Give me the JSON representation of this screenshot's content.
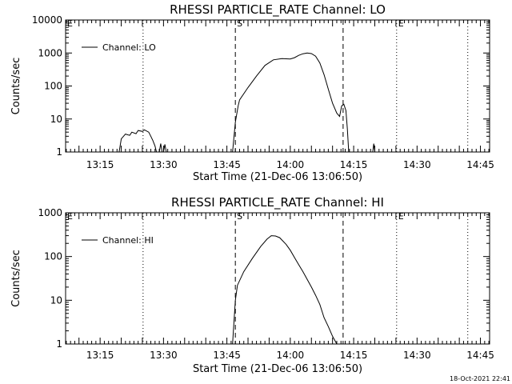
{
  "footer": {
    "timestamp": "18-Oct-2021 22:41"
  },
  "chart_data": [
    {
      "type": "line",
      "title": "RHESSI PARTICLE_RATE Channel: LO",
      "xlabel": "Start Time (21-Dec-06 13:06:50)",
      "ylabel": "Counts/sec",
      "y_scale": "log",
      "ylim": [
        1,
        10000
      ],
      "xlim": [
        "13:06:50",
        "14:47:10"
      ],
      "x_ticks": [
        "13:15",
        "13:30",
        "13:45",
        "14:00",
        "14:15",
        "14:30",
        "14:45"
      ],
      "y_ticks": [
        "1",
        "10",
        "100",
        "1000",
        "10000"
      ],
      "legend": {
        "entry": "Channel: LO",
        "position": "top-left"
      },
      "markers": [
        {
          "label": "E",
          "time": "13:06:50",
          "style": "dotted"
        },
        {
          "label": "",
          "time": "13:25:10",
          "style": "dotted"
        },
        {
          "label": "S",
          "time": "13:47:00",
          "style": "dashed"
        },
        {
          "label": "",
          "time": "14:12:30",
          "style": "dashed"
        },
        {
          "label": "E",
          "time": "14:25:10",
          "style": "dotted"
        },
        {
          "label": "",
          "time": "14:42:00",
          "style": "dotted"
        }
      ],
      "series": [
        {
          "segments": [
            [
              [
                "13:19:30",
                1
              ],
              [
                "13:20:00",
                2.5
              ],
              [
                "13:21:00",
                3.5
              ],
              [
                "13:22:00",
                3.2
              ],
              [
                "13:22:30",
                4
              ],
              [
                "13:23:30",
                3.6
              ],
              [
                "13:24:00",
                4.5
              ],
              [
                "13:25:00",
                4.2
              ],
              [
                "13:25:30",
                4.7
              ],
              [
                "13:26:30",
                4
              ],
              [
                "13:27:00",
                3
              ],
              [
                "13:27:30",
                2.2
              ],
              [
                "13:28:00",
                1.5
              ],
              [
                "13:28:20",
                1
              ]
            ],
            [
              [
                "13:29:00",
                1
              ],
              [
                "13:29:20",
                1.8
              ],
              [
                "13:29:40",
                1
              ]
            ],
            [
              [
                "13:30:00",
                1
              ],
              [
                "13:30:20",
                1.7
              ],
              [
                "13:30:40",
                1
              ]
            ],
            [
              [
                "13:46:20",
                1
              ],
              [
                "13:47:00",
                8
              ],
              [
                "13:47:40",
                25
              ],
              [
                "13:48:00",
                38
              ],
              [
                "13:50:00",
                90
              ],
              [
                "13:52:00",
                200
              ],
              [
                "13:54:00",
                420
              ],
              [
                "13:56:00",
                620
              ],
              [
                "13:58:00",
                680
              ],
              [
                "14:00:00",
                660
              ],
              [
                "14:01:00",
                720
              ],
              [
                "14:02:00",
                850
              ],
              [
                "14:03:00",
                950
              ],
              [
                "14:04:00",
                1000
              ],
              [
                "14:05:00",
                960
              ],
              [
                "14:06:00",
                800
              ],
              [
                "14:07:00",
                500
              ],
              [
                "14:08:00",
                220
              ],
              [
                "14:09:00",
                80
              ],
              [
                "14:10:00",
                30
              ],
              [
                "14:11:00",
                15
              ],
              [
                "14:11:40",
                12
              ],
              [
                "14:12:10",
                25
              ],
              [
                "14:12:40",
                28
              ],
              [
                "14:13:10",
                18
              ],
              [
                "14:13:30",
                5
              ],
              [
                "14:13:50",
                1
              ]
            ],
            [
              [
                "14:19:30",
                1
              ],
              [
                "14:19:45",
                1.8
              ],
              [
                "14:20:00",
                1
              ]
            ]
          ]
        }
      ]
    },
    {
      "type": "line",
      "title": "RHESSI PARTICLE_RATE Channel: HI",
      "xlabel": "Start Time (21-Dec-06 13:06:50)",
      "ylabel": "Counts/sec",
      "y_scale": "log",
      "ylim": [
        1,
        1000
      ],
      "xlim": [
        "13:06:50",
        "14:47:10"
      ],
      "x_ticks": [
        "13:15",
        "13:30",
        "13:45",
        "14:00",
        "14:15",
        "14:30",
        "14:45"
      ],
      "y_ticks": [
        "1",
        "10",
        "100",
        "1000"
      ],
      "legend": {
        "entry": "Channel: HI",
        "position": "top-left"
      },
      "markers": [
        {
          "label": "E",
          "time": "13:06:50",
          "style": "dotted"
        },
        {
          "label": "",
          "time": "13:25:10",
          "style": "dotted"
        },
        {
          "label": "S",
          "time": "13:47:00",
          "style": "dashed"
        },
        {
          "label": "",
          "time": "14:12:30",
          "style": "dashed"
        },
        {
          "label": "E",
          "time": "14:25:10",
          "style": "dotted"
        },
        {
          "label": "",
          "time": "14:42:00",
          "style": "dotted"
        }
      ],
      "series": [
        {
          "segments": [
            [
              [
                "13:46:20",
                1
              ],
              [
                "13:47:00",
                10
              ],
              [
                "13:47:30",
                22
              ],
              [
                "13:49:00",
                45
              ],
              [
                "13:51:00",
                90
              ],
              [
                "13:53:00",
                170
              ],
              [
                "13:54:30",
                250
              ],
              [
                "13:55:30",
                300
              ],
              [
                "13:56:30",
                295
              ],
              [
                "13:57:30",
                270
              ],
              [
                "13:59:00",
                190
              ],
              [
                "14:00:00",
                140
              ],
              [
                "14:01:00",
                95
              ],
              [
                "14:02:00",
                65
              ],
              [
                "14:03:00",
                45
              ],
              [
                "14:04:00",
                30
              ],
              [
                "14:05:00",
                20
              ],
              [
                "14:06:00",
                13
              ],
              [
                "14:07:00",
                8
              ],
              [
                "14:08:00",
                4
              ],
              [
                "14:09:00",
                2.5
              ],
              [
                "14:10:00",
                1.5
              ],
              [
                "14:11:00",
                1
              ]
            ]
          ]
        }
      ]
    }
  ]
}
